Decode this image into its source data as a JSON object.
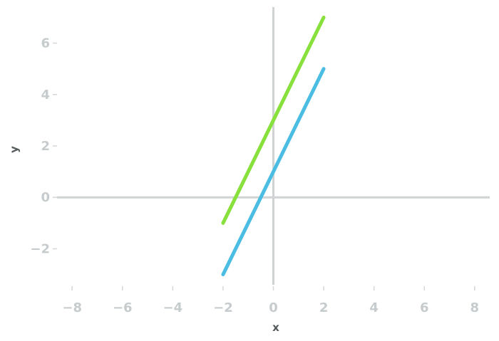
{
  "chart_data": {
    "type": "line",
    "title": "",
    "xlabel": "x",
    "ylabel": "y",
    "xlim": [
      -8.6,
      8.6
    ],
    "ylim": [
      -3.4,
      7.4
    ],
    "xticks": [
      -8,
      -6,
      -4,
      -2,
      0,
      2,
      4,
      6,
      8
    ],
    "xtick_labels": [
      "−8",
      "−6",
      "−4",
      "−2",
      "0",
      "2",
      "4",
      "6",
      "8"
    ],
    "yticks": [
      -2,
      0,
      2,
      4,
      6
    ],
    "ytick_labels": [
      "−2",
      "0",
      "2",
      "4",
      "6"
    ],
    "grid": false,
    "series": [
      {
        "x": [
          -2,
          2
        ],
        "y": [
          -1,
          7
        ],
        "color": "#88e03c"
      },
      {
        "x": [
          -2,
          2
        ],
        "y": [
          -3,
          5
        ],
        "color": "#4bbde3"
      }
    ]
  }
}
